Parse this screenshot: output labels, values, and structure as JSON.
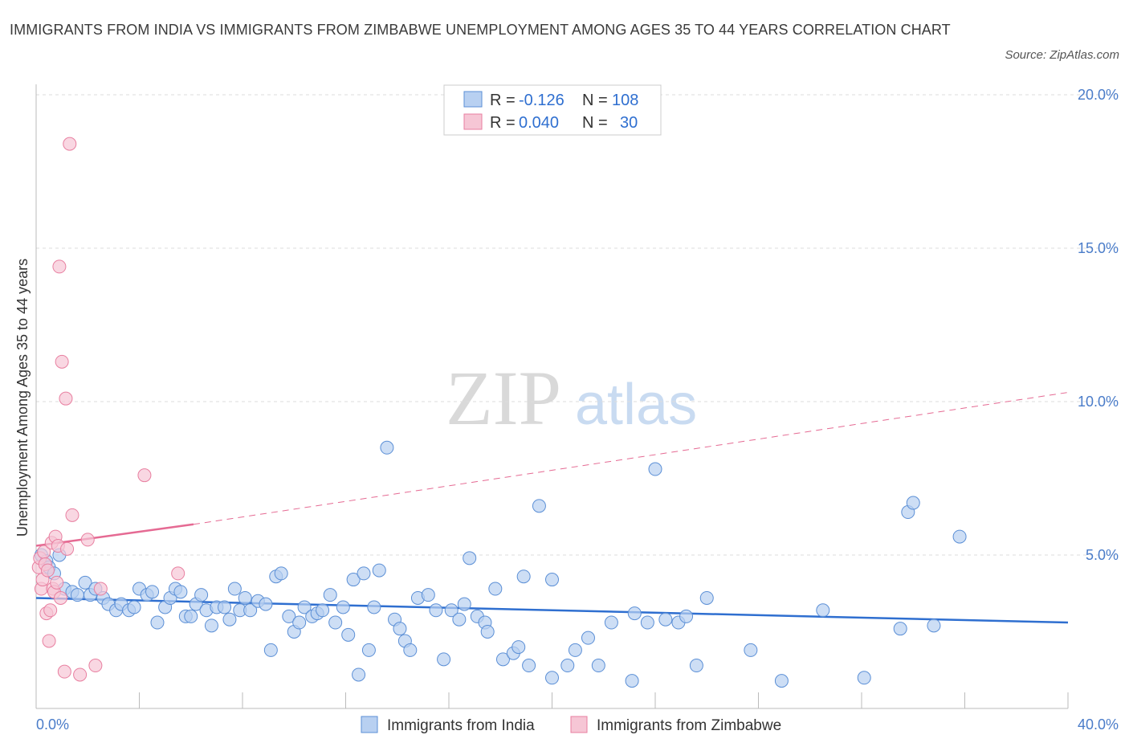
{
  "chart_data": {
    "type": "scatter",
    "title": "IMMIGRANTS FROM INDIA VS IMMIGRANTS FROM ZIMBABWE UNEMPLOYMENT AMONG AGES 35 TO 44 YEARS CORRELATION CHART",
    "source": "Source: ZipAtlas.com",
    "ylabel": "Unemployment Among Ages 35 to 44 years",
    "xlabel": "",
    "xlim": [
      0,
      40
    ],
    "ylim": [
      0,
      20
    ],
    "x_tick_labels": [
      {
        "value": 0,
        "label": "0.0%"
      },
      {
        "value": 40,
        "label": "40.0%"
      }
    ],
    "y_tick_labels": [
      {
        "value": 5,
        "label": "5.0%"
      },
      {
        "value": 10,
        "label": "10.0%"
      },
      {
        "value": 15,
        "label": "15.0%"
      },
      {
        "value": 20,
        "label": "20.0%"
      }
    ],
    "watermark": {
      "part1": "ZIP",
      "part2": "atlas"
    },
    "legend": [
      {
        "r_label": "R =",
        "r_value": "-0.126",
        "n_label": "N =",
        "n_value": "108"
      },
      {
        "r_label": "R =",
        "r_value": "0.040",
        "n_label": "N =",
        "n_value": "30"
      }
    ],
    "colors": {
      "india": "#5b8fd6",
      "india_fill": "#b8d0f1",
      "zimbabwe": "#e87fa0",
      "zimbabwe_fill": "#f6c6d5",
      "india_line": "#2f6fd0",
      "zimbabwe_line": "#e56a93"
    },
    "series": [
      {
        "name": "Immigrants from India",
        "trend": {
          "x": [
            0,
            40
          ],
          "y": [
            3.6,
            2.8
          ],
          "dashed": false
        },
        "points": [
          [
            0.2,
            5.0
          ],
          [
            0.4,
            4.8
          ],
          [
            0.5,
            4.6
          ],
          [
            0.7,
            4.4
          ],
          [
            0.9,
            5.0
          ],
          [
            1.1,
            3.9
          ],
          [
            1.4,
            3.8
          ],
          [
            1.6,
            3.7
          ],
          [
            1.9,
            4.1
          ],
          [
            2.1,
            3.7
          ],
          [
            2.3,
            3.9
          ],
          [
            2.6,
            3.6
          ],
          [
            2.8,
            3.4
          ],
          [
            3.1,
            3.2
          ],
          [
            3.3,
            3.4
          ],
          [
            3.6,
            3.2
          ],
          [
            3.8,
            3.3
          ],
          [
            4.0,
            3.9
          ],
          [
            4.3,
            3.7
          ],
          [
            4.5,
            3.8
          ],
          [
            4.7,
            2.8
          ],
          [
            5.0,
            3.3
          ],
          [
            5.2,
            3.6
          ],
          [
            5.4,
            3.9
          ],
          [
            5.6,
            3.8
          ],
          [
            5.8,
            3.0
          ],
          [
            6.0,
            3.0
          ],
          [
            6.2,
            3.4
          ],
          [
            6.4,
            3.7
          ],
          [
            6.6,
            3.2
          ],
          [
            6.8,
            2.7
          ],
          [
            7.0,
            3.3
          ],
          [
            7.3,
            3.3
          ],
          [
            7.5,
            2.9
          ],
          [
            7.7,
            3.9
          ],
          [
            7.9,
            3.2
          ],
          [
            8.1,
            3.6
          ],
          [
            8.3,
            3.2
          ],
          [
            8.6,
            3.5
          ],
          [
            8.9,
            3.4
          ],
          [
            9.1,
            1.9
          ],
          [
            9.3,
            4.3
          ],
          [
            9.5,
            4.4
          ],
          [
            9.8,
            3.0
          ],
          [
            10.0,
            2.5
          ],
          [
            10.2,
            2.8
          ],
          [
            10.4,
            3.3
          ],
          [
            10.7,
            3.0
          ],
          [
            10.9,
            3.1
          ],
          [
            11.1,
            3.2
          ],
          [
            11.4,
            3.7
          ],
          [
            11.6,
            2.8
          ],
          [
            11.9,
            3.3
          ],
          [
            12.1,
            2.4
          ],
          [
            12.3,
            4.2
          ],
          [
            12.5,
            1.1
          ],
          [
            12.7,
            4.4
          ],
          [
            12.9,
            1.9
          ],
          [
            13.1,
            3.3
          ],
          [
            13.3,
            4.5
          ],
          [
            13.6,
            8.5
          ],
          [
            13.9,
            2.9
          ],
          [
            14.1,
            2.6
          ],
          [
            14.3,
            2.2
          ],
          [
            14.5,
            1.9
          ],
          [
            14.8,
            3.6
          ],
          [
            15.2,
            3.7
          ],
          [
            15.5,
            3.2
          ],
          [
            15.8,
            1.6
          ],
          [
            16.1,
            3.2
          ],
          [
            16.4,
            2.9
          ],
          [
            16.6,
            3.4
          ],
          [
            16.8,
            4.9
          ],
          [
            17.1,
            3.0
          ],
          [
            17.4,
            2.8
          ],
          [
            17.5,
            2.5
          ],
          [
            17.8,
            3.9
          ],
          [
            18.1,
            1.6
          ],
          [
            18.5,
            1.8
          ],
          [
            18.7,
            2.0
          ],
          [
            18.9,
            4.3
          ],
          [
            19.1,
            1.4
          ],
          [
            19.5,
            6.6
          ],
          [
            20.0,
            4.2
          ],
          [
            20.0,
            1.0
          ],
          [
            20.6,
            1.4
          ],
          [
            20.9,
            1.9
          ],
          [
            21.4,
            2.3
          ],
          [
            21.8,
            1.4
          ],
          [
            22.3,
            2.8
          ],
          [
            23.1,
            0.9
          ],
          [
            23.2,
            3.1
          ],
          [
            23.7,
            2.8
          ],
          [
            24.0,
            7.8
          ],
          [
            24.4,
            2.9
          ],
          [
            24.9,
            2.8
          ],
          [
            25.2,
            3.0
          ],
          [
            25.6,
            1.4
          ],
          [
            26.0,
            3.6
          ],
          [
            27.7,
            1.9
          ],
          [
            28.9,
            0.9
          ],
          [
            30.5,
            3.2
          ],
          [
            32.1,
            1.0
          ],
          [
            33.5,
            2.6
          ],
          [
            33.8,
            6.4
          ],
          [
            34.0,
            6.7
          ],
          [
            34.8,
            2.7
          ],
          [
            35.8,
            5.6
          ]
        ]
      },
      {
        "name": "Immigrants from Zimbabwe",
        "trend": {
          "x": [
            0,
            6.1
          ],
          "y": [
            5.3,
            6.0
          ],
          "dashed": false,
          "extension": {
            "x": [
              6.1,
              40
            ],
            "y": [
              6.0,
              10.3
            ],
            "dashed": true
          }
        },
        "points": [
          [
            0.1,
            4.6
          ],
          [
            0.15,
            4.9
          ],
          [
            0.2,
            3.9
          ],
          [
            0.25,
            4.2
          ],
          [
            0.3,
            5.1
          ],
          [
            0.35,
            4.7
          ],
          [
            0.4,
            3.1
          ],
          [
            0.45,
            4.5
          ],
          [
            0.5,
            2.2
          ],
          [
            0.55,
            3.2
          ],
          [
            0.6,
            5.4
          ],
          [
            0.65,
            3.9
          ],
          [
            0.7,
            3.8
          ],
          [
            0.75,
            5.6
          ],
          [
            0.8,
            4.1
          ],
          [
            0.85,
            5.3
          ],
          [
            0.9,
            14.4
          ],
          [
            0.95,
            3.6
          ],
          [
            1.0,
            11.3
          ],
          [
            1.1,
            1.2
          ],
          [
            1.15,
            10.1
          ],
          [
            1.2,
            5.2
          ],
          [
            1.3,
            18.4
          ],
          [
            1.4,
            6.3
          ],
          [
            1.7,
            1.1
          ],
          [
            2.0,
            5.5
          ],
          [
            2.3,
            1.4
          ],
          [
            2.5,
            3.9
          ],
          [
            4.2,
            7.6
          ],
          [
            5.5,
            4.4
          ]
        ]
      }
    ]
  }
}
